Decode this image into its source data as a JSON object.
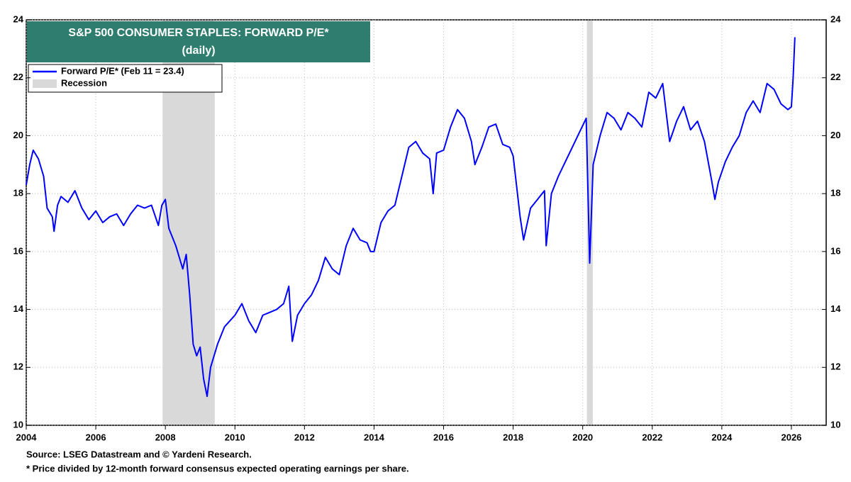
{
  "chart_data": {
    "type": "line",
    "title": "S&P 500 CONSUMER STAPLES: FORWARD P/E*",
    "subtitle": "(daily)",
    "footnotes": [
      "Source: LSEG Datastream and © Yardeni Research.",
      "* Price divided by 12-month forward consensus expected operating earnings per share."
    ],
    "xlim": [
      2004,
      2027
    ],
    "xticks": [
      2004,
      2006,
      2008,
      2010,
      2012,
      2014,
      2016,
      2018,
      2020,
      2022,
      2024,
      2026
    ],
    "ylim": [
      10,
      24
    ],
    "yticks": [
      10,
      12,
      14,
      16,
      18,
      20,
      22,
      24
    ],
    "grid": true,
    "legend": "upper left",
    "recession": {
      "name": "Recession",
      "color": "#d9d9d9",
      "periods": [
        [
          2007.92,
          2009.42
        ],
        [
          2020.12,
          2020.29
        ]
      ]
    },
    "series": [
      {
        "name": "Forward P/E* (Feb 11 = 23.4)",
        "color": "#0000ff",
        "x": [
          2004.0,
          2004.1,
          2004.2,
          2004.35,
          2004.5,
          2004.6,
          2004.75,
          2004.8,
          2004.9,
          2005.0,
          2005.2,
          2005.4,
          2005.6,
          2005.8,
          2006.0,
          2006.2,
          2006.4,
          2006.6,
          2006.8,
          2007.0,
          2007.2,
          2007.4,
          2007.6,
          2007.8,
          2007.9,
          2008.0,
          2008.1,
          2008.3,
          2008.5,
          2008.6,
          2008.7,
          2008.8,
          2008.9,
          2009.0,
          2009.1,
          2009.2,
          2009.3,
          2009.5,
          2009.7,
          2010.0,
          2010.2,
          2010.4,
          2010.6,
          2010.8,
          2011.0,
          2011.2,
          2011.4,
          2011.55,
          2011.6,
          2011.65,
          2011.8,
          2012.0,
          2012.2,
          2012.4,
          2012.6,
          2012.8,
          2013.0,
          2013.2,
          2013.4,
          2013.6,
          2013.8,
          2013.9,
          2014.0,
          2014.2,
          2014.4,
          2014.6,
          2014.8,
          2015.0,
          2015.2,
          2015.4,
          2015.6,
          2015.7,
          2015.8,
          2016.0,
          2016.2,
          2016.4,
          2016.6,
          2016.8,
          2016.9,
          2017.1,
          2017.3,
          2017.5,
          2017.7,
          2017.9,
          2018.0,
          2018.2,
          2018.3,
          2018.5,
          2018.7,
          2018.9,
          2018.95,
          2019.1,
          2019.3,
          2019.5,
          2019.7,
          2019.9,
          2020.1,
          2020.2,
          2020.3,
          2020.5,
          2020.7,
          2020.9,
          2021.1,
          2021.3,
          2021.5,
          2021.7,
          2021.9,
          2022.1,
          2022.3,
          2022.5,
          2022.7,
          2022.9,
          2023.1,
          2023.3,
          2023.5,
          2023.7,
          2023.8,
          2023.9,
          2024.1,
          2024.3,
          2024.5,
          2024.7,
          2024.9,
          2025.1,
          2025.3,
          2025.5,
          2025.7,
          2025.9,
          2026.0,
          2026.05,
          2026.1
        ],
        "values": [
          18.3,
          19.0,
          19.5,
          19.2,
          18.6,
          17.5,
          17.2,
          16.7,
          17.6,
          17.9,
          17.7,
          18.1,
          17.5,
          17.1,
          17.4,
          17.0,
          17.2,
          17.3,
          16.9,
          17.3,
          17.6,
          17.5,
          17.6,
          16.9,
          17.6,
          17.8,
          16.8,
          16.2,
          15.4,
          15.9,
          14.5,
          12.8,
          12.4,
          12.7,
          11.6,
          11.0,
          12.0,
          12.8,
          13.4,
          13.8,
          14.2,
          13.6,
          13.2,
          13.8,
          13.9,
          14.0,
          14.2,
          14.8,
          13.8,
          12.9,
          13.8,
          14.2,
          14.5,
          15.0,
          15.8,
          15.4,
          15.2,
          16.2,
          16.8,
          16.4,
          16.3,
          16.0,
          16.0,
          17.0,
          17.4,
          17.6,
          18.6,
          19.6,
          19.8,
          19.4,
          19.2,
          18.0,
          19.4,
          19.5,
          20.3,
          20.9,
          20.6,
          19.8,
          19.0,
          19.6,
          20.3,
          20.4,
          19.7,
          19.6,
          19.3,
          17.2,
          16.4,
          17.5,
          17.8,
          18.1,
          16.2,
          18.0,
          18.6,
          19.1,
          19.6,
          20.1,
          20.6,
          15.6,
          19.0,
          20.0,
          20.8,
          20.6,
          20.2,
          20.8,
          20.6,
          20.3,
          21.5,
          21.3,
          21.8,
          19.8,
          20.5,
          21.0,
          20.2,
          20.5,
          19.8,
          18.5,
          17.8,
          18.4,
          19.1,
          19.6,
          20.0,
          20.8,
          21.2,
          20.8,
          21.8,
          21.6,
          21.1,
          20.9,
          21.0,
          22.0,
          23.4
        ]
      }
    ]
  }
}
